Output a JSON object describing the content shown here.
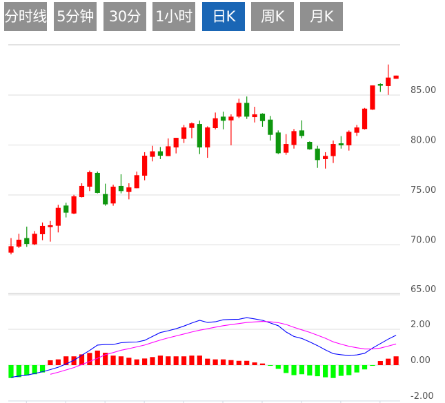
{
  "tabs": [
    {
      "label": "分时线",
      "active": false
    },
    {
      "label": "5分钟",
      "active": false
    },
    {
      "label": "30分钟",
      "active": false
    },
    {
      "label": "1小时",
      "active": false
    },
    {
      "label": "日K",
      "active": true
    },
    {
      "label": "周K",
      "active": false
    },
    {
      "label": "月K",
      "active": false
    }
  ],
  "colors": {
    "tab_bg": "#909090",
    "tab_active": "#1a66b5",
    "up": "#ff0000",
    "down": "#0e960e",
    "macd_up": "#ff0000",
    "macd_down": "#00ff00",
    "dif": "#0000ff",
    "dea": "#ff00ff",
    "grid": "#dddddd"
  },
  "chart_data": [
    {
      "type": "candlestick",
      "title": "",
      "y_ticks": [
        "85.00",
        "80.00",
        "75.00",
        "70.00",
        "65.00"
      ],
      "y_tick_values": [
        85,
        80,
        75,
        70,
        65
      ],
      "ylim": [
        65,
        90
      ],
      "ohlc": [
        [
          69.23,
          70.68,
          69.05,
          69.87
        ],
        [
          69.83,
          71.11,
          69.69,
          70.52
        ],
        [
          70.68,
          71.83,
          69.8,
          70.1
        ],
        [
          70.06,
          71.39,
          69.97,
          71.11
        ],
        [
          71.07,
          72.24,
          70.47,
          71.9
        ],
        [
          71.78,
          72.4,
          70.33,
          71.97
        ],
        [
          71.92,
          74.01,
          71.25,
          73.71
        ],
        [
          73.94,
          74.22,
          72.75,
          73.23
        ],
        [
          73.14,
          75.02,
          73.07,
          74.86
        ],
        [
          74.79,
          76.17,
          74.75,
          75.9
        ],
        [
          75.83,
          77.44,
          75.39,
          77.28
        ],
        [
          77.21,
          77.34,
          75.16,
          75.21
        ],
        [
          75.09,
          76.13,
          73.92,
          74.06
        ],
        [
          74.15,
          76.03,
          73.92,
          75.83
        ],
        [
          75.9,
          77.07,
          75.16,
          75.39
        ],
        [
          75.3,
          76.17,
          74.56,
          75.76
        ],
        [
          75.67,
          77.34,
          75.67,
          76.98
        ],
        [
          76.93,
          79.28,
          76.47,
          78.93
        ],
        [
          78.82,
          79.92,
          78.36,
          79.37
        ],
        [
          79.37,
          79.8,
          78.59,
          78.93
        ],
        [
          78.89,
          80.66,
          78.89,
          79.87
        ],
        [
          79.76,
          80.72,
          79.16,
          80.72
        ],
        [
          80.61,
          82.01,
          80.2,
          81.76
        ],
        [
          81.71,
          82.26,
          80.68,
          82.17
        ],
        [
          82.1,
          82.45,
          79.09,
          79.76
        ],
        [
          79.76,
          81.87,
          78.72,
          81.76
        ],
        [
          81.69,
          83.25,
          81.57,
          82.68
        ],
        [
          82.84,
          83.34,
          81.57,
          82.43
        ],
        [
          82.47,
          83.07,
          79.97,
          82.84
        ],
        [
          82.84,
          84.63,
          82.7,
          84.22
        ],
        [
          84.22,
          84.86,
          82.61,
          82.84
        ],
        [
          82.79,
          83.83,
          82.26,
          83.07
        ],
        [
          83.14,
          83.18,
          81.83,
          82.4
        ],
        [
          82.54,
          82.91,
          80.45,
          81.02
        ],
        [
          81.25,
          81.46,
          79.09,
          79.18
        ],
        [
          79.23,
          81.09,
          79.02,
          80.1
        ],
        [
          80.01,
          81.6,
          79.64,
          81.39
        ],
        [
          81.46,
          82.47,
          80.68,
          80.91
        ],
        [
          80.31,
          80.36,
          79.53,
          79.57
        ],
        [
          79.64,
          79.92,
          77.71,
          78.49
        ],
        [
          78.59,
          79.28,
          77.64,
          78.91
        ],
        [
          78.89,
          80.45,
          78.2,
          80.1
        ],
        [
          80.17,
          80.89,
          79.64,
          79.97
        ],
        [
          79.97,
          81.46,
          79.44,
          81.32
        ],
        [
          81.23,
          82.01,
          80.91,
          81.76
        ],
        [
          81.6,
          83.71,
          81.55,
          83.64
        ],
        [
          83.55,
          85.97,
          83.51,
          85.97
        ],
        [
          86.1,
          86.17,
          85.32,
          85.94
        ],
        [
          85.9,
          88.06,
          85.02,
          86.75
        ],
        [
          86.63,
          86.95,
          86.63,
          86.95
        ]
      ]
    },
    {
      "type": "macd",
      "y_ticks": [
        "2.00",
        "0.00",
        "-2.00"
      ],
      "y_tick_values": [
        2,
        0,
        -2
      ],
      "ylim": [
        -2,
        3.65
      ],
      "histogram": [
        -0.72,
        -0.67,
        -0.58,
        -0.51,
        -0.41,
        0.27,
        0.32,
        0.49,
        0.49,
        0.6,
        0.68,
        0.81,
        0.69,
        0.53,
        0.49,
        0.41,
        0.32,
        0.37,
        0.45,
        0.53,
        0.49,
        0.49,
        0.49,
        0.53,
        0.53,
        0.36,
        0.32,
        0.32,
        0.28,
        0.24,
        0.24,
        0.15,
        0.09,
        -0.04,
        -0.21,
        -0.44,
        -0.56,
        -0.51,
        -0.58,
        -0.62,
        -0.68,
        -0.72,
        -0.6,
        -0.56,
        -0.41,
        -0.24,
        -0.04,
        0.23,
        0.36,
        0.49
      ],
      "dif": [
        -0.68,
        -0.61,
        -0.56,
        -0.47,
        -0.37,
        -0.25,
        -0.12,
        0.06,
        0.27,
        0.55,
        0.82,
        1.12,
        1.15,
        1.15,
        1.25,
        1.28,
        1.29,
        1.38,
        1.6,
        1.82,
        1.92,
        2.03,
        2.18,
        2.35,
        2.5,
        2.38,
        2.42,
        2.53,
        2.55,
        2.56,
        2.65,
        2.58,
        2.5,
        2.35,
        2.2,
        1.85,
        1.6,
        1.49,
        1.3,
        1.09,
        0.85,
        0.64,
        0.58,
        0.53,
        0.57,
        0.66,
        0.95,
        1.2,
        1.45,
        1.67
      ],
      "dea": [
        null,
        null,
        null,
        null,
        null,
        -0.51,
        -0.4,
        -0.27,
        -0.14,
        0.03,
        0.2,
        0.38,
        0.58,
        0.7,
        0.83,
        0.92,
        1.02,
        1.12,
        1.26,
        1.4,
        1.52,
        1.63,
        1.74,
        1.85,
        1.95,
        2.03,
        2.12,
        2.2,
        2.26,
        2.32,
        2.38,
        2.41,
        2.44,
        2.42,
        2.37,
        2.27,
        2.11,
        1.97,
        1.83,
        1.67,
        1.5,
        1.3,
        1.17,
        1.05,
        0.97,
        0.9,
        0.9,
        0.95,
        1.06,
        1.18
      ]
    }
  ]
}
